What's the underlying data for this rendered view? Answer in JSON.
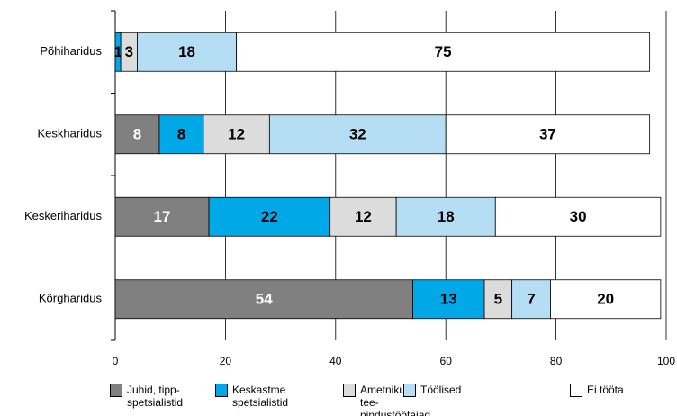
{
  "chart_data": {
    "type": "stacked-barh",
    "categories": [
      "Põhiharidus",
      "Keskharidus",
      "Keskeriharidus",
      "Kõrgharidus"
    ],
    "series": [
      {
        "name": "Juhid, tipp-spetsialistid",
        "color": "#808080",
        "values": [
          0,
          8,
          17,
          54
        ],
        "value_labels": [
          null,
          "8",
          "17",
          "54"
        ]
      },
      {
        "name": "Keskastme spetsialistid",
        "color": "#00a8e8",
        "values": [
          1,
          8,
          22,
          13
        ]
      },
      {
        "name": "Ametnikud, tee-nindustöötajad",
        "color": "#dcdcdc",
        "values": [
          3,
          12,
          12,
          5
        ]
      },
      {
        "name": "Töölised",
        "color": "#b5def5",
        "values": [
          18,
          32,
          18,
          7
        ]
      },
      {
        "name": "Ei tööta",
        "color": "#ffffff",
        "values": [
          75,
          37,
          30,
          20
        ]
      }
    ],
    "xlim": [
      0,
      100
    ],
    "xticks": [
      0,
      20,
      40,
      60,
      80,
      100
    ],
    "grid": true
  }
}
